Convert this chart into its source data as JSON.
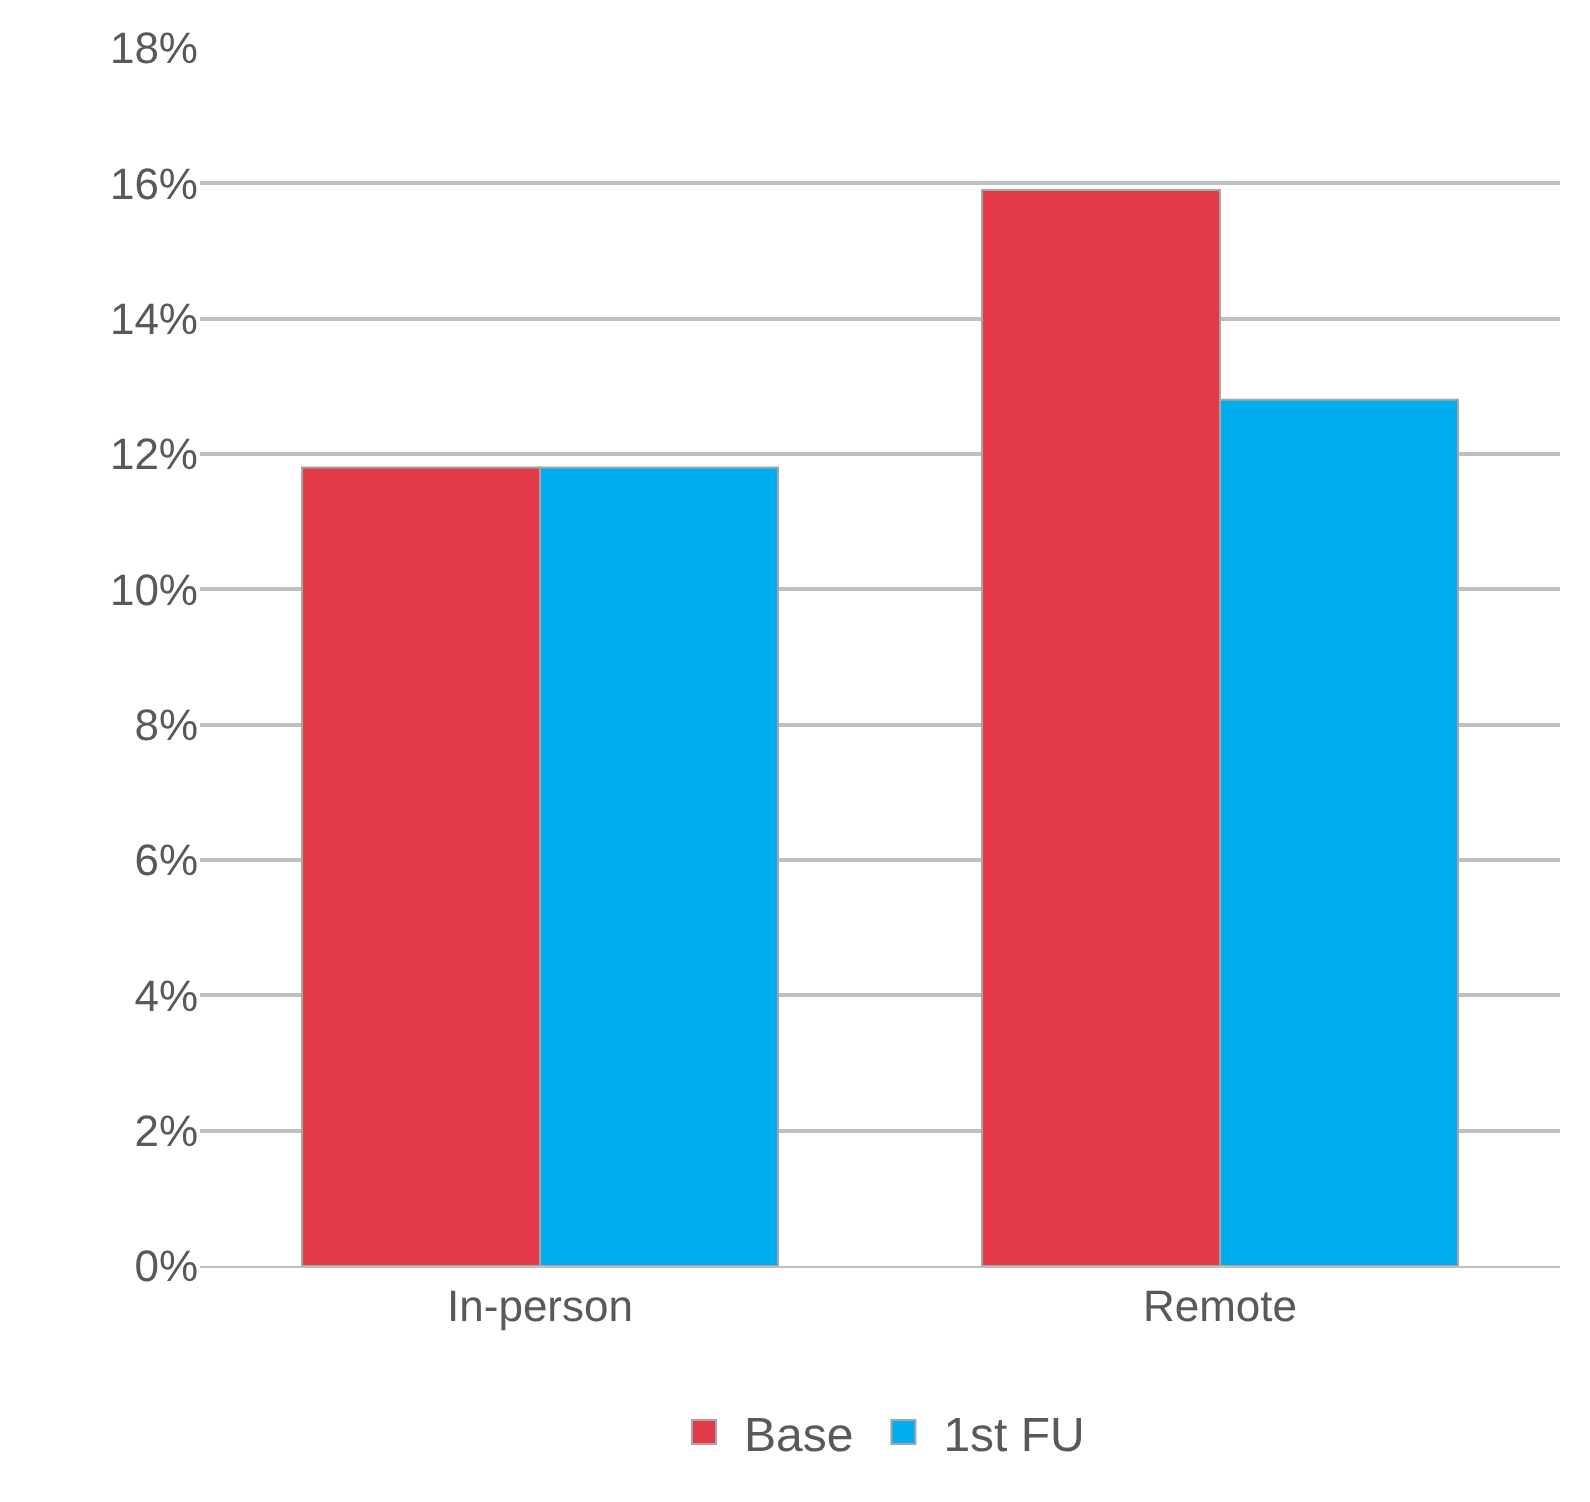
{
  "chart_data": {
    "type": "bar",
    "categories": [
      "In-person",
      "Remote"
    ],
    "series": [
      {
        "name": "Base",
        "color": "#e43a47",
        "values": [
          11.8,
          15.9
        ]
      },
      {
        "name": "1st FU",
        "color": "#00adef",
        "values": [
          11.8,
          12.8
        ]
      }
    ],
    "ylim": [
      0,
      18
    ],
    "yticks": [
      {
        "value": 0,
        "label": "0%"
      },
      {
        "value": 2,
        "label": "2%"
      },
      {
        "value": 4,
        "label": "4%"
      },
      {
        "value": 6,
        "label": "6%"
      },
      {
        "value": 8,
        "label": "8%"
      },
      {
        "value": 10,
        "label": "10%"
      },
      {
        "value": 12,
        "label": "12%"
      },
      {
        "value": 14,
        "label": "14%"
      },
      {
        "value": 16,
        "label": "16%"
      },
      {
        "value": 18,
        "label": "18%"
      }
    ],
    "grid": "y",
    "legend": "bottom"
  }
}
